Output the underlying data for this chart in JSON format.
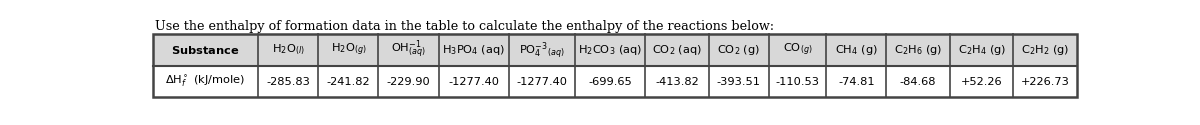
{
  "title": "Use the enthalpy of formation data in the table to calculate the enthalpy of the reactions below:",
  "values": [
    "-285.83",
    "-241.82",
    "-229.90",
    "-1277.40",
    "-1277.40",
    "-699.65",
    "-413.82",
    "-393.51",
    "-110.53",
    "-74.81",
    "-84.68",
    "+52.26",
    "+226.73"
  ],
  "background_color": "#ffffff",
  "header_bg": "#d8d8d8",
  "border_color": "#444444",
  "text_color": "#000000",
  "title_fontsize": 9.2,
  "table_fontsize": 8.2,
  "col_widths_rel": [
    1.65,
    0.95,
    0.95,
    0.95,
    1.1,
    1.05,
    1.1,
    1.0,
    0.95,
    0.9,
    0.95,
    1.0,
    1.0,
    1.0
  ]
}
